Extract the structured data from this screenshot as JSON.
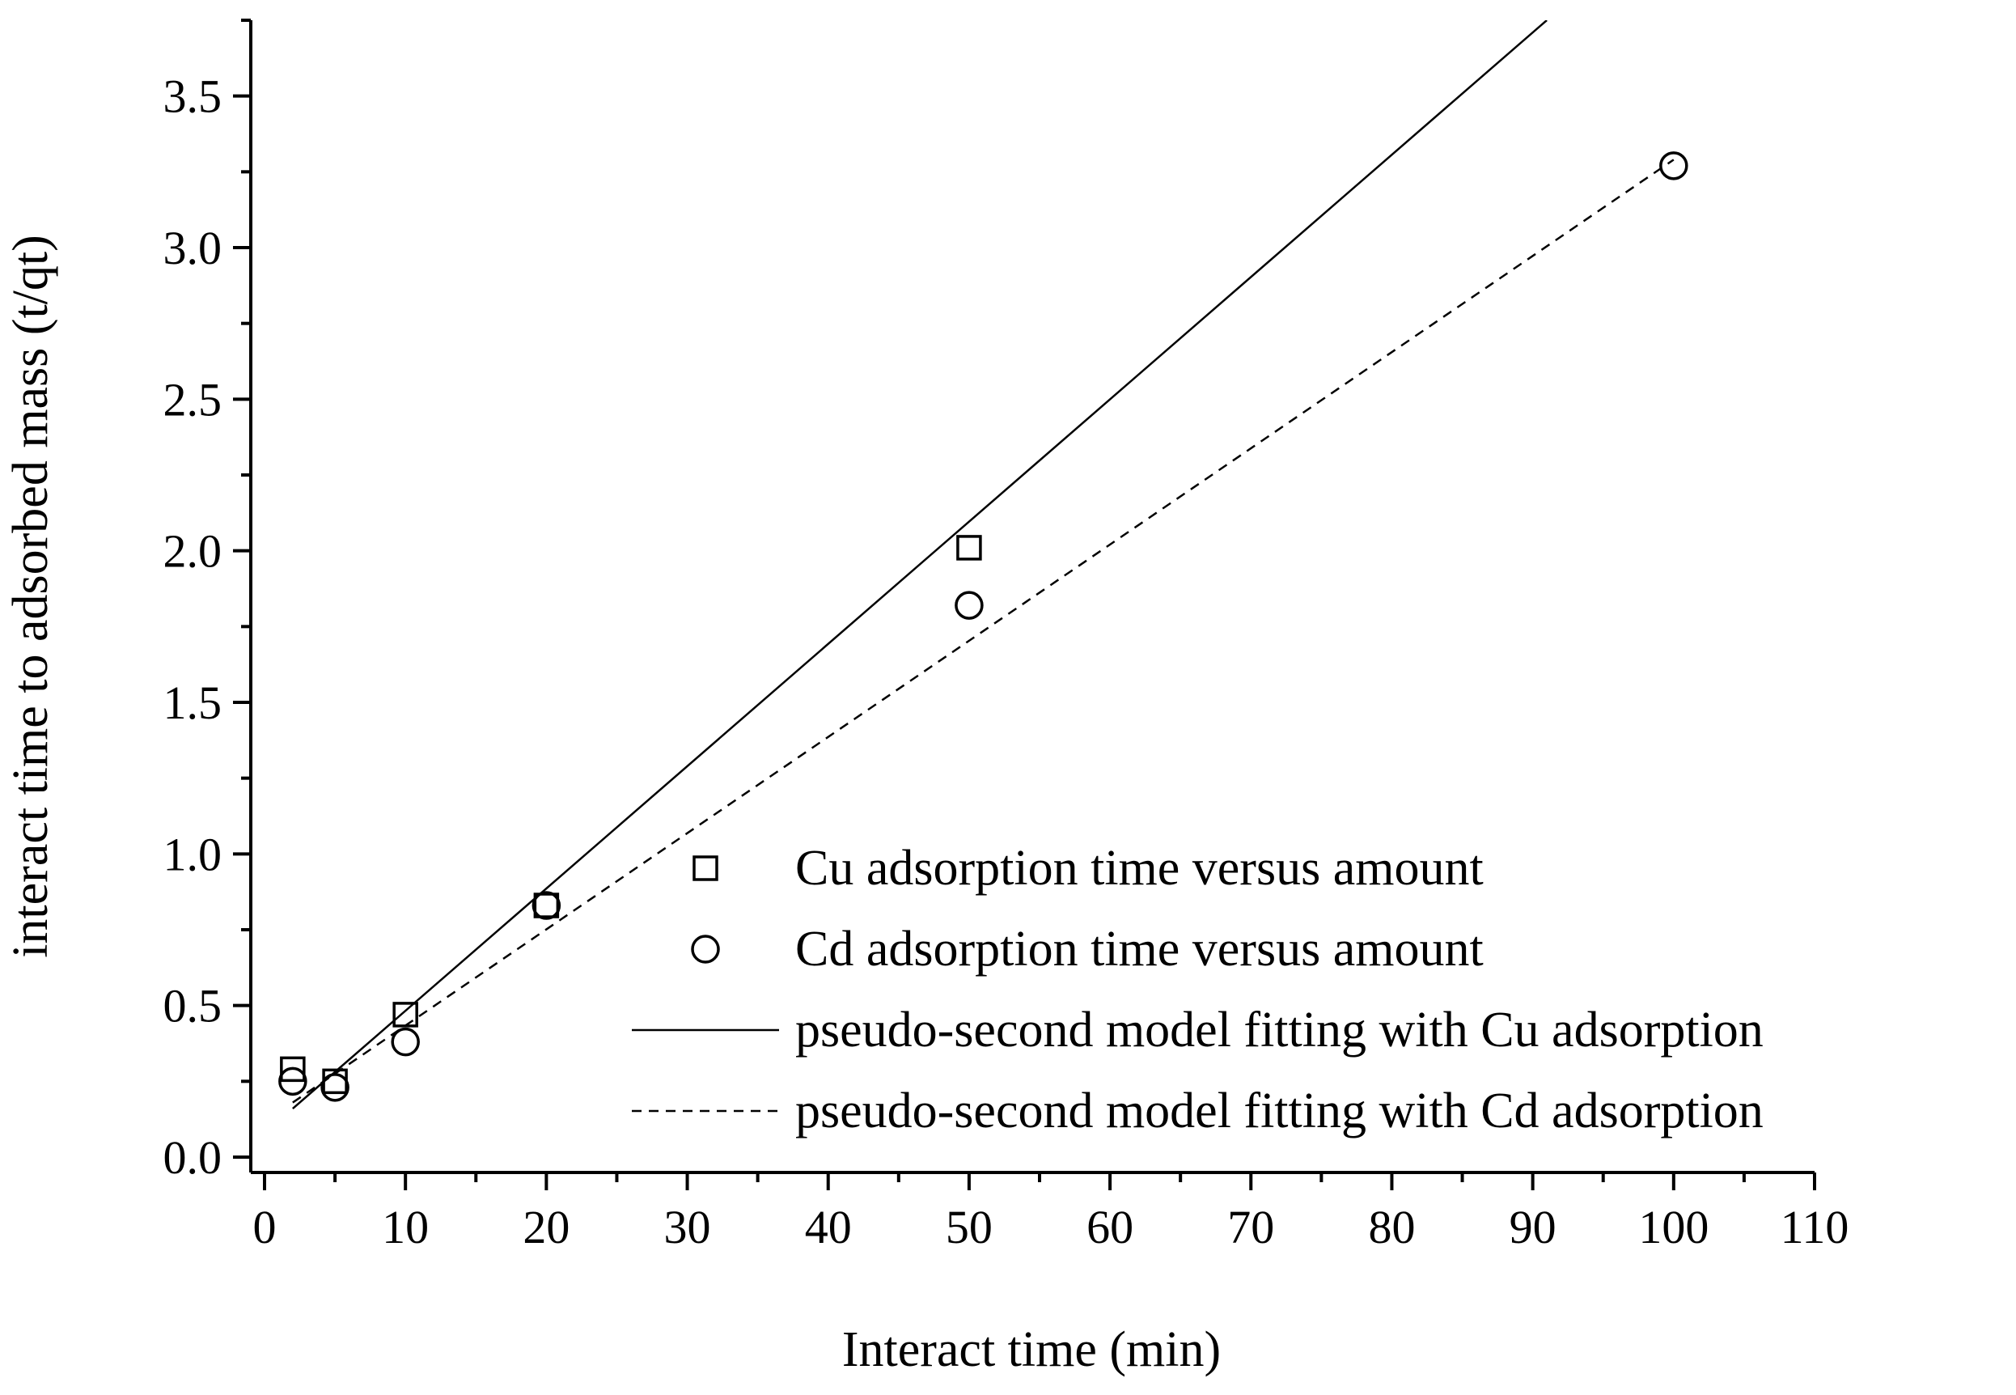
{
  "chart_data": {
    "type": "scatter",
    "title": "",
    "xlabel": "Interact time (min)",
    "ylabel": "interact time to adsorbed mass (t/qt)",
    "xlim": [
      0,
      110
    ],
    "ylim": [
      0,
      3.75
    ],
    "x_major_ticks": [
      0,
      10,
      20,
      30,
      40,
      50,
      60,
      70,
      80,
      90,
      100,
      110
    ],
    "x_tick_labels": [
      "0",
      "10",
      "20",
      "30",
      "40",
      "50",
      "60",
      "70",
      "80",
      "90",
      "100",
      "110"
    ],
    "y_major_ticks": [
      0,
      0.5,
      1.0,
      1.5,
      2.0,
      2.5,
      3.0,
      3.5
    ],
    "y_tick_labels": [
      "0.0",
      "0.5",
      "1.0",
      "1.5",
      "2.0",
      "2.5",
      "3.0",
      "3.5"
    ],
    "grid": false,
    "legend_position": "lower-right",
    "series": [
      {
        "name": "Cu adsorption time versus amount",
        "kind": "points",
        "marker": "square",
        "x": [
          2,
          5,
          10,
          20,
          50
        ],
        "y": [
          0.29,
          0.25,
          0.47,
          0.83,
          2.01
        ]
      },
      {
        "name": "Cd adsorption time versus amount",
        "kind": "points",
        "marker": "circle",
        "x": [
          2,
          5,
          10,
          20,
          50,
          100
        ],
        "y": [
          0.25,
          0.23,
          0.38,
          0.83,
          1.82,
          3.27
        ]
      },
      {
        "name": "pseudo-second model fitting with Cu adsorption",
        "kind": "line",
        "style": "solid",
        "x": [
          2,
          91
        ],
        "y": [
          0.16,
          3.75
        ]
      },
      {
        "name": "pseudo-second model fitting with Cd adsorption",
        "kind": "line",
        "style": "dashed",
        "x": [
          2,
          100
        ],
        "y": [
          0.18,
          3.29
        ]
      }
    ]
  }
}
